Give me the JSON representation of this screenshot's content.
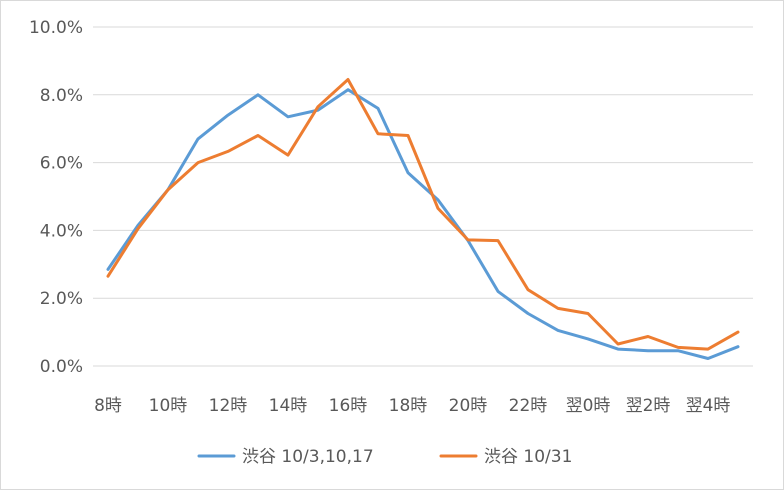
{
  "chart_data": {
    "type": "line",
    "title": "",
    "xlabel": "",
    "ylabel": "",
    "ylim": [
      0,
      10
    ],
    "y_tick_labels": [
      "0.0%",
      "2.0%",
      "4.0%",
      "6.0%",
      "8.0%",
      "10.0%"
    ],
    "categories": [
      "8時",
      "9時",
      "10時",
      "11時",
      "12時",
      "13時",
      "14時",
      "15時",
      "16時",
      "17時",
      "18時",
      "19時",
      "20時",
      "21時",
      "22時",
      "23時",
      "翌0時",
      "翌1時",
      "翌2時",
      "翌3時",
      "翌4時",
      "翌5時"
    ],
    "x_tick_labels": [
      "8時",
      "",
      "10時",
      "",
      "12時",
      "",
      "14時",
      "",
      "16時",
      "",
      "18時",
      "",
      "20時",
      "",
      "22時",
      "",
      "翌0時",
      "",
      "翌2時",
      "",
      "翌4時",
      ""
    ],
    "grid": true,
    "legend_position": "bottom",
    "series": [
      {
        "name": "渋谷 10/3,10,17",
        "color": "#5b9bd5",
        "values": [
          2.85,
          4.15,
          5.2,
          6.7,
          7.4,
          8.0,
          7.35,
          7.55,
          8.15,
          7.6,
          5.7,
          4.9,
          3.7,
          2.2,
          1.55,
          1.05,
          0.8,
          0.5,
          0.45,
          0.45,
          0.22,
          0.57
        ]
      },
      {
        "name": "渋谷 10/31",
        "color": "#ed7d31",
        "values": [
          2.65,
          4.05,
          5.2,
          6.0,
          6.33,
          6.8,
          6.22,
          7.65,
          8.45,
          6.85,
          6.8,
          4.65,
          3.72,
          3.7,
          2.25,
          1.7,
          1.55,
          0.65,
          0.87,
          0.55,
          0.5,
          1.0
        ]
      }
    ]
  }
}
